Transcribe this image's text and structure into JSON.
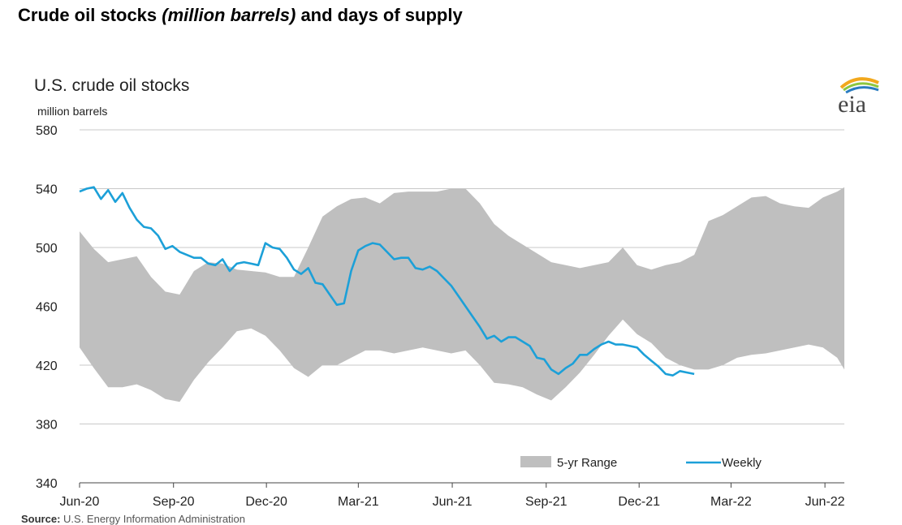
{
  "page": {
    "title_part1": "Crude oil stocks ",
    "title_italic": "(million barrels)",
    "title_part2": " and days of supply",
    "source_label": "Source:",
    "source_text": " U.S. Energy Information Administration"
  },
  "logo": {
    "text": "eia",
    "icon": "eia-logo"
  },
  "colors": {
    "range": "#bfbfbf",
    "weekly": "#1ca0d8",
    "grid": "#c8c8c8"
  },
  "chart_data": {
    "type": "area",
    "title": "U.S. crude oil stocks",
    "ylabel": "million barrels",
    "ylim": [
      340,
      580
    ],
    "yticks": [
      340,
      380,
      420,
      460,
      500,
      540,
      580
    ],
    "xlim": [
      "2020-06-05",
      "2022-06-24"
    ],
    "xticks": [
      {
        "label": "Jun-20",
        "date": "2020-06-05"
      },
      {
        "label": "Sep-20",
        "date": "2020-09-05"
      },
      {
        "label": "Dec-20",
        "date": "2020-12-05"
      },
      {
        "label": "Mar-21",
        "date": "2021-03-05"
      },
      {
        "label": "Jun-21",
        "date": "2021-06-05"
      },
      {
        "label": "Sep-21",
        "date": "2021-09-05"
      },
      {
        "label": "Dec-21",
        "date": "2021-12-05"
      },
      {
        "label": "Mar-22",
        "date": "2022-03-05"
      },
      {
        "label": "Jun-22",
        "date": "2022-06-05"
      }
    ],
    "grid": true,
    "legend": {
      "placement": "bottom-right",
      "entries": [
        "5-yr Range",
        "Weekly"
      ]
    },
    "series": [
      {
        "name": "5-yr Range",
        "kind": "band",
        "x": [
          "2020-06-05",
          "2020-06-19",
          "2020-07-03",
          "2020-07-17",
          "2020-07-31",
          "2020-08-14",
          "2020-08-28",
          "2020-09-11",
          "2020-09-25",
          "2020-10-09",
          "2020-10-23",
          "2020-11-06",
          "2020-11-20",
          "2020-12-04",
          "2020-12-18",
          "2021-01-01",
          "2021-01-15",
          "2021-01-29",
          "2021-02-12",
          "2021-02-26",
          "2021-03-12",
          "2021-03-26",
          "2021-04-09",
          "2021-04-23",
          "2021-05-07",
          "2021-05-21",
          "2021-06-04",
          "2021-06-18",
          "2021-07-02",
          "2021-07-16",
          "2021-07-30",
          "2021-08-13",
          "2021-08-27",
          "2021-09-10",
          "2021-09-24",
          "2021-10-08",
          "2021-10-22",
          "2021-11-05",
          "2021-11-19",
          "2021-12-03",
          "2021-12-17",
          "2021-12-31",
          "2022-01-14",
          "2022-01-28",
          "2022-02-11",
          "2022-02-25",
          "2022-03-11",
          "2022-03-25",
          "2022-04-08",
          "2022-04-22",
          "2022-05-06",
          "2022-05-20",
          "2022-06-03",
          "2022-06-17",
          "2022-06-24"
        ],
        "low": [
          432,
          418,
          405,
          405,
          407,
          403,
          397,
          395,
          410,
          422,
          432,
          443,
          445,
          440,
          430,
          418,
          412,
          420,
          420,
          425,
          430,
          430,
          428,
          430,
          432,
          430,
          428,
          430,
          420,
          408,
          407,
          405,
          400,
          396,
          405,
          415,
          427,
          440,
          451,
          441,
          435,
          425,
          420,
          417,
          417,
          420,
          425,
          427,
          428,
          430,
          432,
          434,
          432,
          425,
          417
        ],
        "high": [
          511,
          499,
          490,
          492,
          494,
          480,
          470,
          468,
          484,
          490,
          489,
          485,
          484,
          483,
          480,
          480,
          500,
          521,
          528,
          533,
          534,
          530,
          537,
          538,
          538,
          538,
          540,
          540,
          530,
          516,
          508,
          502,
          496,
          490,
          488,
          486,
          488,
          490,
          500,
          488,
          485,
          488,
          490,
          495,
          518,
          522,
          528,
          534,
          535,
          530,
          528,
          527,
          534,
          538,
          541
        ]
      },
      {
        "name": "Weekly",
        "kind": "line",
        "x": [
          "2020-06-05",
          "2020-06-12",
          "2020-06-19",
          "2020-06-26",
          "2020-07-03",
          "2020-07-10",
          "2020-07-17",
          "2020-07-24",
          "2020-07-31",
          "2020-08-07",
          "2020-08-14",
          "2020-08-21",
          "2020-08-28",
          "2020-09-04",
          "2020-09-11",
          "2020-09-18",
          "2020-09-25",
          "2020-10-02",
          "2020-10-09",
          "2020-10-16",
          "2020-10-23",
          "2020-10-30",
          "2020-11-06",
          "2020-11-13",
          "2020-11-20",
          "2020-11-27",
          "2020-12-04",
          "2020-12-11",
          "2020-12-18",
          "2020-12-25",
          "2021-01-01",
          "2021-01-08",
          "2021-01-15",
          "2021-01-22",
          "2021-01-29",
          "2021-02-05",
          "2021-02-12",
          "2021-02-19",
          "2021-02-26",
          "2021-03-05",
          "2021-03-12",
          "2021-03-19",
          "2021-03-26",
          "2021-04-02",
          "2021-04-09",
          "2021-04-16",
          "2021-04-23",
          "2021-04-30",
          "2021-05-07",
          "2021-05-14",
          "2021-05-21",
          "2021-05-28",
          "2021-06-04",
          "2021-06-11",
          "2021-06-18",
          "2021-06-25",
          "2021-07-02",
          "2021-07-09",
          "2021-07-16",
          "2021-07-23",
          "2021-07-30",
          "2021-08-06",
          "2021-08-13",
          "2021-08-20",
          "2021-08-27",
          "2021-09-03",
          "2021-09-10",
          "2021-09-17",
          "2021-09-24",
          "2021-10-01",
          "2021-10-08",
          "2021-10-15",
          "2021-10-22",
          "2021-10-29",
          "2021-11-05",
          "2021-11-12",
          "2021-11-19",
          "2021-11-26",
          "2021-12-03",
          "2021-12-10",
          "2021-12-17",
          "2021-12-24",
          "2021-12-31",
          "2022-01-07",
          "2022-01-14",
          "2022-01-21",
          "2022-01-28"
        ],
        "values": [
          538,
          540,
          541,
          533,
          539,
          531,
          537,
          527,
          519,
          514,
          513,
          508,
          499,
          501,
          497,
          495,
          493,
          493,
          489,
          488,
          492,
          484,
          489,
          490,
          489,
          488,
          503,
          500,
          499,
          493,
          485,
          482,
          486,
          476,
          475,
          468,
          461,
          462,
          484,
          498,
          501,
          503,
          502,
          497,
          492,
          493,
          493,
          486,
          485,
          487,
          484,
          479,
          474,
          467,
          460,
          453,
          446,
          438,
          440,
          436,
          439,
          439,
          436,
          433,
          425,
          424,
          417,
          414,
          418,
          421,
          427,
          427,
          431,
          434,
          436,
          434,
          434,
          433,
          432,
          427,
          423,
          419,
          414,
          413,
          416,
          415,
          414
        ]
      }
    ]
  }
}
